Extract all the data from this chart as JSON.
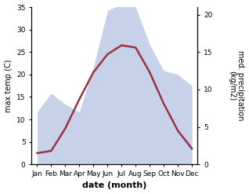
{
  "months": [
    "Jan",
    "Feb",
    "Mar",
    "Apr",
    "May",
    "Jun",
    "Jul",
    "Aug",
    "Sep",
    "Oct",
    "Nov",
    "Dec"
  ],
  "month_positions": [
    0,
    1,
    2,
    3,
    4,
    5,
    6,
    7,
    8,
    9,
    10,
    11
  ],
  "temperature": [
    2.5,
    3.0,
    8.0,
    14.5,
    20.5,
    24.5,
    26.5,
    26.0,
    20.5,
    13.5,
    7.5,
    3.5
  ],
  "precipitation": [
    7.0,
    9.5,
    8.0,
    7.0,
    13.0,
    20.5,
    21.5,
    21.0,
    16.0,
    12.5,
    12.0,
    10.5
  ],
  "temp_color": "#993344",
  "precip_fill_color": "#aabbdd",
  "precip_alpha": 0.65,
  "temp_ylim": [
    0,
    35
  ],
  "precip_ylim": [
    0,
    21
  ],
  "ylabel_left": "max temp (C)",
  "ylabel_right": "med. precipitation\n(kg/m2)",
  "xlabel": "date (month)",
  "left_yticks": [
    0,
    5,
    10,
    15,
    20,
    25,
    30,
    35
  ],
  "right_yticks": [
    0,
    5,
    10,
    15,
    20
  ],
  "temp_linewidth": 1.8,
  "bg_color": "#ffffff",
  "xlabel_fontsize": 8,
  "ylabel_fontsize": 7,
  "tick_fontsize": 6.5
}
